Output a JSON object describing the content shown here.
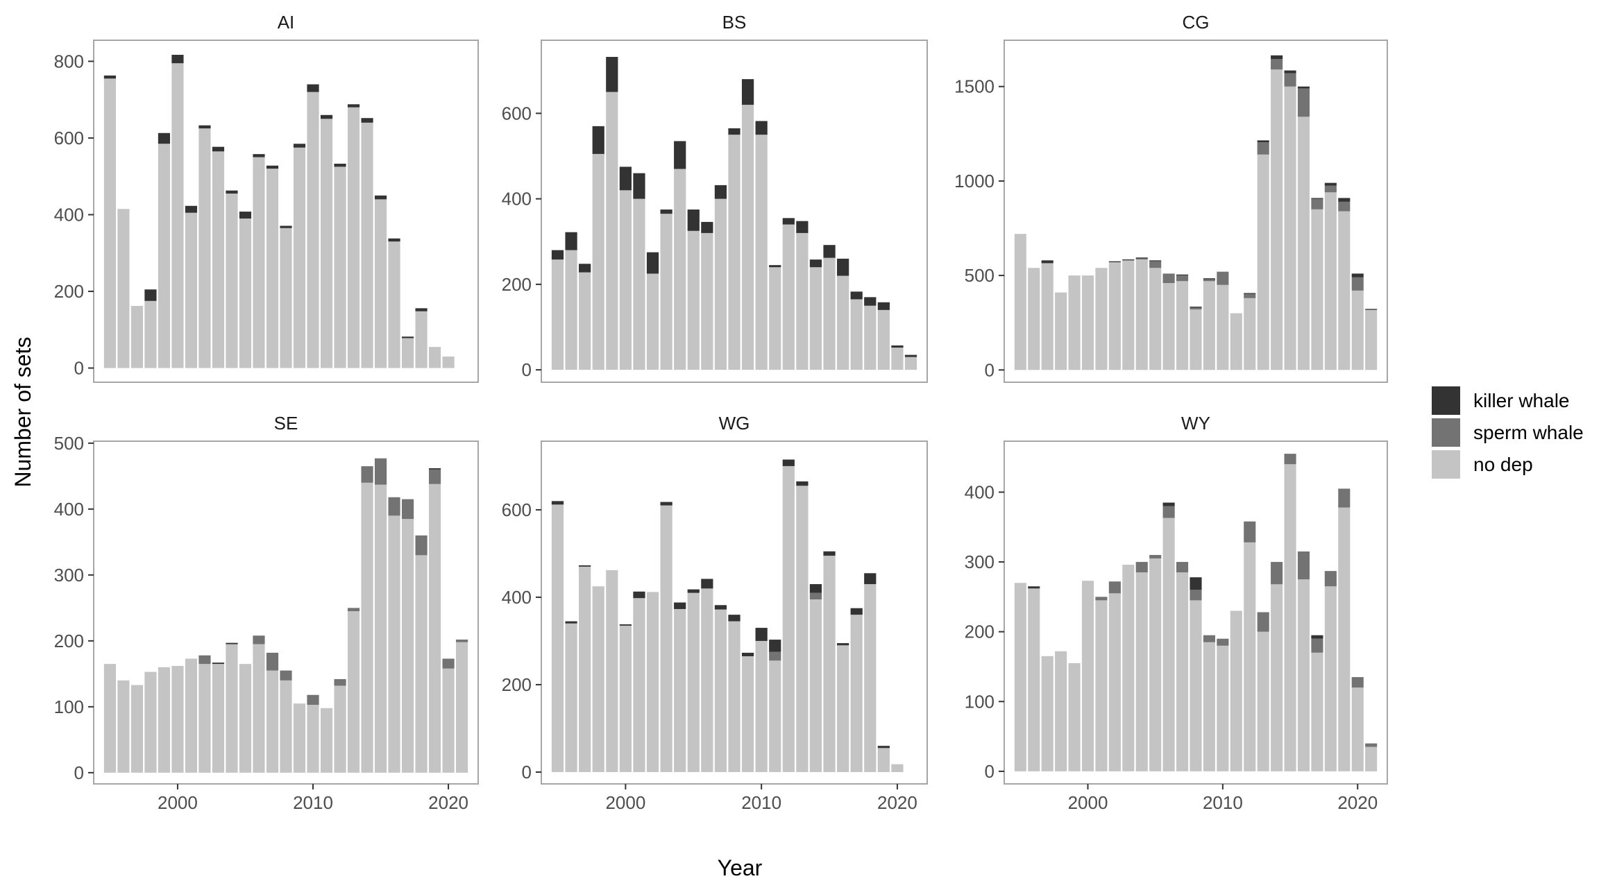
{
  "chart_data": {
    "type": "bar",
    "stacked": true,
    "facet_layout": "2 rows x 3 columns",
    "xlabel": "Year",
    "ylabel": "Number of sets",
    "grid": false,
    "legend": {
      "position": "right",
      "entries": [
        "killer whale",
        "sperm whale",
        "no dep"
      ]
    },
    "series_order_bottom_to_top": [
      "no dep",
      "sperm whale",
      "killer whale"
    ],
    "colors": {
      "killer whale": "#333333",
      "sperm whale": "#737373",
      "no dep": "#c4c4c4",
      "panel_border": "#a6a6a6",
      "tick": "#333333"
    },
    "years": [
      1995,
      1996,
      1997,
      1998,
      1999,
      2000,
      2001,
      2002,
      2003,
      2004,
      2005,
      2006,
      2007,
      2008,
      2009,
      2010,
      2011,
      2012,
      2013,
      2014,
      2015,
      2016,
      2017,
      2018,
      2019,
      2020,
      2021
    ],
    "xticks": [
      2000,
      2010,
      2020
    ],
    "panels": [
      {
        "title": "AI",
        "ylim": [
          -37,
          855
        ],
        "yticks": [
          0,
          200,
          400,
          600,
          800
        ],
        "x_axis_labels": false,
        "series": [
          {
            "name": "no dep",
            "values": [
              755,
              415,
              162,
              175,
              585,
              795,
              405,
              625,
              565,
              455,
              390,
              550,
              520,
              365,
              575,
              720,
              650,
              525,
              680,
              640,
              440,
              330,
              78,
              148,
              55,
              30,
              0
            ]
          },
          {
            "name": "sperm whale",
            "values": [
              0,
              0,
              0,
              0,
              0,
              0,
              0,
              0,
              0,
              0,
              0,
              0,
              0,
              0,
              0,
              0,
              0,
              0,
              0,
              0,
              0,
              0,
              0,
              0,
              0,
              0,
              0
            ]
          },
          {
            "name": "killer whale",
            "values": [
              8,
              0,
              0,
              30,
              28,
              22,
              18,
              8,
              12,
              8,
              18,
              8,
              8,
              6,
              10,
              20,
              10,
              8,
              8,
              12,
              10,
              8,
              4,
              8,
              0,
              0,
              0
            ]
          }
        ]
      },
      {
        "title": "BS",
        "ylim": [
          -29,
          771
        ],
        "yticks": [
          0,
          200,
          400,
          600
        ],
        "x_axis_labels": false,
        "series": [
          {
            "name": "no dep",
            "values": [
              258,
              280,
              228,
              505,
              650,
              420,
              400,
              225,
              365,
              470,
              325,
              320,
              400,
              550,
              620,
              550,
              240,
              340,
              320,
              240,
              262,
              220,
              165,
              150,
              140,
              52,
              30
            ]
          },
          {
            "name": "sperm whale",
            "values": [
              0,
              0,
              0,
              0,
              0,
              0,
              0,
              0,
              0,
              0,
              0,
              0,
              0,
              0,
              0,
              0,
              0,
              0,
              0,
              0,
              0,
              0,
              0,
              0,
              0,
              0,
              0
            ]
          },
          {
            "name": "killer whale",
            "values": [
              22,
              42,
              20,
              65,
              82,
              55,
              60,
              50,
              10,
              65,
              50,
              26,
              32,
              15,
              60,
              32,
              5,
              15,
              28,
              18,
              30,
              40,
              18,
              20,
              18,
              5,
              5
            ]
          }
        ]
      },
      {
        "title": "CG",
        "ylim": [
          -65,
          1745
        ],
        "yticks": [
          0,
          500,
          1000,
          1500
        ],
        "x_axis_labels": false,
        "series": [
          {
            "name": "no dep",
            "values": [
              720,
              540,
              565,
              410,
              500,
              500,
              540,
              570,
              580,
              585,
              540,
              460,
              470,
              320,
              470,
              450,
              300,
              380,
              1140,
              1590,
              1500,
              1340,
              850,
              940,
              840,
              420,
              318
            ]
          },
          {
            "name": "sperm whale",
            "values": [
              0,
              0,
              0,
              0,
              0,
              0,
              0,
              0,
              0,
              5,
              35,
              50,
              30,
              10,
              10,
              70,
              0,
              22,
              65,
              55,
              70,
              150,
              55,
              35,
              50,
              70,
              0
            ]
          },
          {
            "name": "killer whale",
            "values": [
              0,
              0,
              15,
              0,
              0,
              0,
              0,
              5,
              5,
              5,
              5,
              0,
              5,
              5,
              5,
              0,
              0,
              5,
              10,
              20,
              15,
              10,
              5,
              15,
              20,
              20,
              5
            ]
          }
        ]
      },
      {
        "title": "SE",
        "ylim": [
          -17,
          503
        ],
        "yticks": [
          0,
          100,
          200,
          300,
          400,
          500
        ],
        "x_axis_labels": true,
        "series": [
          {
            "name": "no dep",
            "values": [
              165,
              140,
              133,
              153,
              160,
              162,
              173,
              165,
              165,
              195,
              165,
              195,
              155,
              140,
              105,
              103,
              98,
              132,
              245,
              440,
              437,
              390,
              385,
              330,
              438,
              158,
              198
            ]
          },
          {
            "name": "sperm whale",
            "values": [
              0,
              0,
              0,
              0,
              0,
              0,
              0,
              13,
              0,
              0,
              0,
              13,
              27,
              15,
              0,
              15,
              0,
              10,
              5,
              25,
              40,
              28,
              30,
              30,
              22,
              15,
              4
            ]
          },
          {
            "name": "killer whale",
            "values": [
              0,
              0,
              0,
              0,
              0,
              0,
              0,
              0,
              2,
              2,
              0,
              0,
              0,
              0,
              0,
              0,
              0,
              0,
              0,
              0,
              0,
              0,
              0,
              0,
              2,
              0,
              0
            ]
          }
        ]
      },
      {
        "title": "WG",
        "ylim": [
          -27,
          757
        ],
        "yticks": [
          0,
          200,
          400,
          600
        ],
        "x_axis_labels": true,
        "series": [
          {
            "name": "no dep",
            "values": [
              612,
              340,
              470,
              425,
              462,
              335,
              398,
              412,
              610,
              373,
              410,
              420,
              372,
              345,
              265,
              300,
              255,
              700,
              655,
              395,
              495,
              290,
              360,
              430,
              55,
              18,
              0
            ]
          },
          {
            "name": "sperm whale",
            "values": [
              0,
              0,
              0,
              0,
              0,
              0,
              0,
              0,
              0,
              0,
              0,
              0,
              0,
              0,
              0,
              0,
              20,
              0,
              0,
              15,
              0,
              0,
              0,
              0,
              0,
              0,
              0
            ]
          },
          {
            "name": "killer whale",
            "values": [
              8,
              5,
              3,
              0,
              0,
              3,
              15,
              0,
              8,
              15,
              8,
              22,
              10,
              15,
              8,
              30,
              28,
              15,
              10,
              20,
              10,
              5,
              15,
              25,
              5,
              0,
              0
            ]
          }
        ]
      },
      {
        "title": "WY",
        "ylim": [
          -18,
          473
        ],
        "yticks": [
          0,
          100,
          200,
          300,
          400
        ],
        "x_axis_labels": true,
        "series": [
          {
            "name": "no dep",
            "values": [
              270,
              262,
              165,
              172,
              155,
              273,
              245,
              255,
              296,
              285,
              305,
              363,
              285,
              245,
              185,
              180,
              230,
              328,
              200,
              268,
              440,
              275,
              170,
              265,
              378,
              120,
              35
            ]
          },
          {
            "name": "sperm whale",
            "values": [
              0,
              0,
              0,
              0,
              0,
              0,
              5,
              17,
              0,
              15,
              5,
              17,
              15,
              15,
              10,
              10,
              0,
              30,
              28,
              32,
              15,
              40,
              20,
              22,
              27,
              15,
              5
            ]
          },
          {
            "name": "killer whale",
            "values": [
              0,
              3,
              0,
              0,
              0,
              0,
              0,
              0,
              0,
              0,
              0,
              5,
              0,
              18,
              0,
              0,
              0,
              0,
              0,
              0,
              0,
              0,
              5,
              0,
              0,
              0,
              0
            ]
          }
        ]
      }
    ]
  }
}
